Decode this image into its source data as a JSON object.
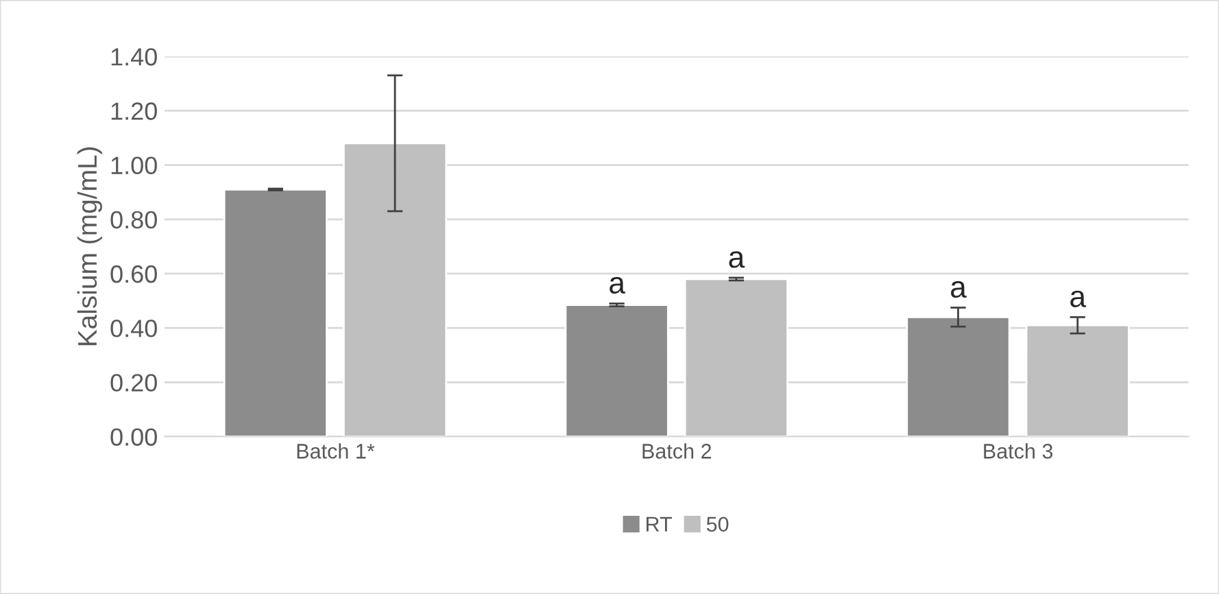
{
  "chart_data": {
    "type": "bar",
    "ylabel": "Kalsium (mg/mL)",
    "categories": [
      "Batch 1*",
      "Batch 2",
      "Batch 3"
    ],
    "series": [
      {
        "name": "RT",
        "color": "#8c8c8c",
        "values": [
          0.91,
          0.485,
          0.44
        ],
        "errors": [
          0.003,
          0.005,
          0.035
        ],
        "value_labels": [
          null,
          "a",
          "a"
        ]
      },
      {
        "name": "50",
        "color": "#bfbfbf",
        "values": [
          1.08,
          0.58,
          0.41
        ],
        "errors": [
          0.25,
          0.005,
          0.03
        ],
        "value_labels": [
          null,
          "a",
          "a"
        ]
      }
    ],
    "ylim": [
      0,
      1.4
    ],
    "yticks": [
      {
        "value": 0,
        "label": "0.00"
      },
      {
        "value": 0.2,
        "label": "0.20"
      },
      {
        "value": 0.4,
        "label": "0.40"
      },
      {
        "value": 0.6,
        "label": "0.60"
      },
      {
        "value": 0.8,
        "label": "0.80"
      },
      {
        "value": 1.0,
        "label": "1.00"
      },
      {
        "value": 1.2,
        "label": "1.20"
      },
      {
        "value": 1.4,
        "label": "1.40"
      }
    ],
    "grid": "y",
    "legend": "bottom"
  }
}
